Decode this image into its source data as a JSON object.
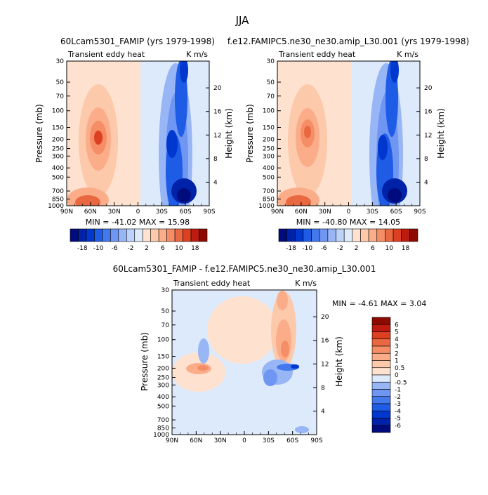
{
  "figure": {
    "title": "JJA"
  },
  "chart_data": [
    {
      "type": "heatmap",
      "title": "60Lcam5301_FAMIP (yrs 1979-1998)",
      "subtitle_left": "Transient eddy heat",
      "subtitle_right": "K m/s",
      "ylabel": "Pressure (mb)",
      "ylabel_right": "Height (km)",
      "x_ticks": [
        "90N",
        "60N",
        "30N",
        "0",
        "30S",
        "60S",
        "90S"
      ],
      "y_ticks": [
        "30",
        "50",
        "70",
        "100",
        "150",
        "200",
        "250",
        "300",
        "400",
        "500",
        "700",
        "850",
        "1000"
      ],
      "right_ticks": [
        "20",
        "16",
        "12",
        "8",
        "4"
      ],
      "stats": "MIN = -41.02   MAX =  15.98",
      "colorbar_levels": [
        "-18",
        "-10",
        "-6",
        "-2",
        "2",
        "6",
        "10",
        "18"
      ],
      "min": -41.02,
      "max": 15.98
    },
    {
      "type": "heatmap",
      "title": "f.e12.FAMIPC5.ne30_ne30.amip_L30.001 (yrs 1979-1998)",
      "subtitle_left": "Transient eddy heat",
      "subtitle_right": "K m/s",
      "ylabel": "Pressure (mb)",
      "ylabel_right": "Height (km)",
      "x_ticks": [
        "90N",
        "60N",
        "30N",
        "0",
        "30S",
        "60S",
        "90S"
      ],
      "y_ticks": [
        "30",
        "50",
        "70",
        "100",
        "150",
        "200",
        "250",
        "300",
        "400",
        "500",
        "700",
        "850",
        "1000"
      ],
      "right_ticks": [
        "20",
        "16",
        "12",
        "8",
        "4"
      ],
      "stats": "MIN = -40.80   MAX =  14.05",
      "colorbar_levels": [
        "-18",
        "-10",
        "-6",
        "-2",
        "2",
        "6",
        "10",
        "18"
      ],
      "min": -40.8,
      "max": 14.05
    },
    {
      "type": "heatmap",
      "title": "60Lcam5301_FAMIP - f.e12.FAMIPC5.ne30_ne30.amip_L30.001",
      "subtitle_left": "Transient eddy heat",
      "subtitle_right": "K m/s",
      "ylabel": "Pressure (mb)",
      "ylabel_right": "Height (km)",
      "x_ticks": [
        "90N",
        "60N",
        "30N",
        "0",
        "30S",
        "60S",
        "90S"
      ],
      "y_ticks": [
        "30",
        "50",
        "70",
        "100",
        "150",
        "200",
        "250",
        "300",
        "400",
        "500",
        "700",
        "850",
        "1000"
      ],
      "right_ticks": [
        "20",
        "16",
        "12",
        "8",
        "4"
      ],
      "stats": "MIN =  -4.61   MAX =   3.04",
      "colorbar_levels": [
        "6",
        "5",
        "4",
        "3",
        "2",
        "1",
        "0.5",
        "0",
        "-0.5",
        "-1",
        "-2",
        "-3",
        "-4",
        "-5",
        "-6"
      ],
      "min": -4.61,
      "max": 3.04
    }
  ],
  "colors": {
    "cmap17": [
      "#000c7d",
      "#0022a8",
      "#0037cf",
      "#1f5ce6",
      "#4479ee",
      "#6e96f2",
      "#98b6f5",
      "#bdd2f8",
      "#ddeafc",
      "#fee2cf",
      "#fcc9ab",
      "#fbad8a",
      "#f58d66",
      "#ea6841",
      "#dd4020",
      "#bd1a10",
      "#8c0a00"
    ],
    "cmap16": [
      "#000c7d",
      "#0022a8",
      "#0037cf",
      "#1f5ce6",
      "#4479ee",
      "#6e96f2",
      "#98b6f5",
      "#ddeafc",
      "#fee2cf",
      "#fcc9ab",
      "#fbad8a",
      "#f58d66",
      "#ea6841",
      "#dd4020",
      "#bd1a10",
      "#8c0a00"
    ]
  }
}
